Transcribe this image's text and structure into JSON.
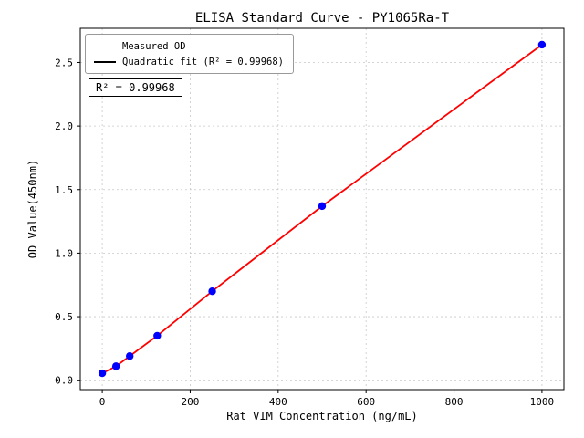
{
  "chart_data": {
    "type": "scatter",
    "title": "ELISA Standard Curve - PY1065Ra-T",
    "xlabel": "Rat VIM Concentration (ng/mL)",
    "ylabel": "OD Value(450nm)",
    "xlim": [
      -50,
      1050
    ],
    "ylim": [
      -0.074,
      2.769
    ],
    "xticks": [
      0,
      200,
      400,
      600,
      800,
      1000
    ],
    "yticks": [
      0.0,
      0.5,
      1.0,
      1.5,
      2.0,
      2.5
    ],
    "grid": true,
    "annotation": "R² = 0.99968",
    "colors": {
      "points": "#0000ff",
      "fit": "#ff0000",
      "grid": "#c8c8c8",
      "frame": "#000000"
    },
    "legend": [
      {
        "label": "Measured OD",
        "marker": "dot",
        "color": "#0000ff"
      },
      {
        "label": "Quadratic fit (R² = 0.99968)",
        "marker": "line",
        "color": "#ff0000"
      }
    ],
    "series": [
      {
        "name": "Measured OD",
        "type": "scatter",
        "color": "#0000ff",
        "points": [
          [
            0,
            0.055
          ],
          [
            31.25,
            0.11
          ],
          [
            62.5,
            0.19
          ],
          [
            125,
            0.35
          ],
          [
            250,
            0.7
          ],
          [
            500,
            1.37
          ],
          [
            1000,
            2.64
          ]
        ]
      },
      {
        "name": "Quadratic fit",
        "type": "line",
        "color": "#ff0000",
        "points": [
          [
            0,
            0.055
          ],
          [
            31.25,
            0.11
          ],
          [
            62.5,
            0.19
          ],
          [
            125,
            0.35
          ],
          [
            250,
            0.7
          ],
          [
            500,
            1.37
          ],
          [
            1000,
            2.64
          ]
        ]
      }
    ]
  }
}
